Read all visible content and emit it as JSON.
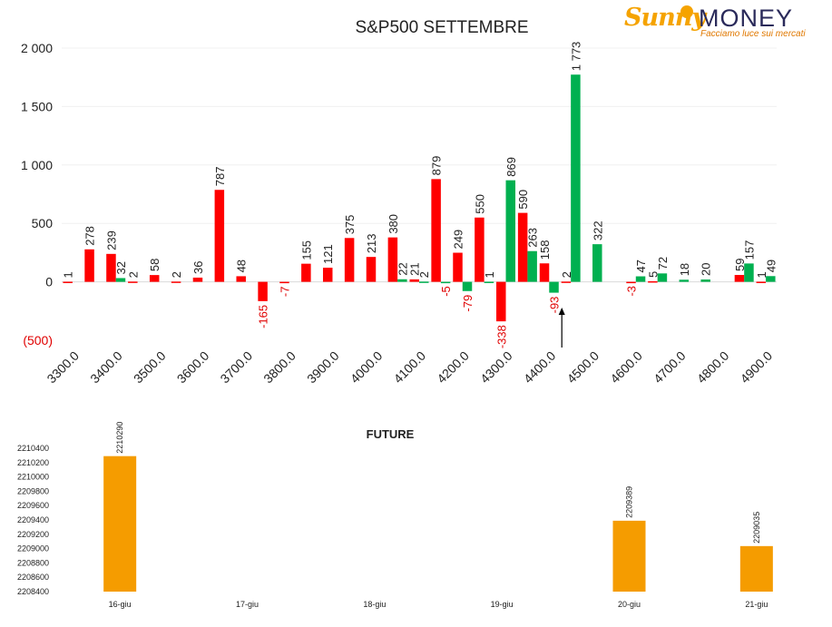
{
  "logo": {
    "brand_sunny": "Sunny",
    "brand_money": "MONEY",
    "tagline": "Facciamo luce sui mercati"
  },
  "colors": {
    "calls": "#ff0000",
    "puts": "#00b050",
    "future": "#f59c00",
    "negative_label": "#e00000"
  },
  "chart_data": [
    {
      "type": "bar",
      "title": "S&P500 SETTEMBRE",
      "xlabel": "",
      "ylabel": "",
      "ylim": [
        -500,
        2000
      ],
      "yticks": [
        -500,
        0,
        500,
        1000,
        1500,
        2000
      ],
      "ytick_labels": [
        "(500)",
        "0",
        "500",
        "1 000",
        "1 500",
        "2 000"
      ],
      "grid": true,
      "categories": [
        "3300.0",
        "3350.0",
        "3400.0",
        "3450.0",
        "3500.0",
        "3550.0",
        "3600.0",
        "3650.0",
        "3700.0",
        "3750.0",
        "3800.0",
        "3850.0",
        "3900.0",
        "3950.0",
        "4000.0",
        "4050.0",
        "4100.0",
        "4150.0",
        "4200.0",
        "4250.0",
        "4300.0",
        "4350.0",
        "4400.0",
        "4450.0",
        "4500.0",
        "4550.0",
        "4600.0",
        "4650.0",
        "4700.0",
        "4750.0",
        "4800.0",
        "4850.0",
        "4900.0"
      ],
      "x_tick_labels": [
        "3300.0",
        "3400.0",
        "3500.0",
        "3600.0",
        "3700.0",
        "3800.0",
        "3900.0",
        "4000.0",
        "4100.0",
        "4200.0",
        "4300.0",
        "4400.0",
        "4500.0",
        "4600.0",
        "4700.0",
        "4800.0",
        "4900.0"
      ],
      "series": [
        {
          "values": [
            1,
            278,
            239,
            2,
            58,
            2,
            36,
            787,
            48,
            -165,
            -7,
            155,
            121,
            375,
            213,
            380,
            21,
            879,
            249,
            550,
            -338,
            590,
            158,
            2,
            null,
            null,
            -3,
            5,
            null,
            null,
            null,
            59,
            1
          ]
        },
        {
          "values": [
            null,
            null,
            32,
            null,
            null,
            null,
            null,
            null,
            null,
            null,
            null,
            null,
            null,
            null,
            null,
            22,
            2,
            -5,
            -79,
            1,
            869,
            263,
            -93,
            1773,
            322,
            null,
            47,
            72,
            18,
            20,
            null,
            157,
            49
          ]
        }
      ],
      "data_labels": [
        [
          "1",
          "278",
          "239",
          "2",
          "58",
          "2",
          "36",
          "787",
          "48",
          "-165",
          "-7",
          "155",
          "121",
          "375",
          "213",
          "380",
          "21",
          "879",
          "249",
          "550",
          "-338",
          "590",
          "158",
          "2",
          null,
          null,
          "-3",
          "5",
          null,
          null,
          null,
          "59",
          "1"
        ],
        [
          null,
          null,
          "32",
          null,
          null,
          null,
          null,
          null,
          null,
          null,
          null,
          null,
          null,
          null,
          null,
          "22",
          "2",
          "-5",
          "-79",
          "1",
          "869",
          "263",
          "-93",
          "1 773",
          "322",
          null,
          "47",
          "72",
          "18",
          "20",
          null,
          "157",
          "49"
        ]
      ],
      "annotation": {
        "type": "arrow",
        "category": "4450.0"
      }
    },
    {
      "type": "bar",
      "title": "FUTURE",
      "xlabel": "",
      "ylabel": "",
      "ylim": [
        2208400,
        2210400
      ],
      "yticks": [
        2208400,
        2208600,
        2208800,
        2209000,
        2209200,
        2209400,
        2209600,
        2209800,
        2210000,
        2210200,
        2210400
      ],
      "grid": false,
      "categories": [
        "16-giu",
        "17-giu",
        "18-giu",
        "19-giu",
        "20-giu",
        "21-giu"
      ],
      "values": [
        2210290,
        null,
        null,
        null,
        2209389,
        2209035
      ],
      "data_labels": [
        "2210290",
        null,
        null,
        null,
        "2209389",
        "2209035"
      ]
    }
  ]
}
